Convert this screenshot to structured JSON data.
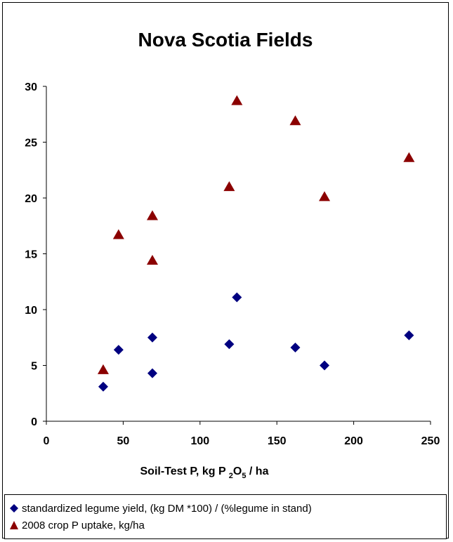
{
  "chart_data": {
    "type": "scatter",
    "title": "Nova Scotia Fields",
    "xlabel": "Soil-Test P, kg P2O5 / ha",
    "xlabel_parts": {
      "main": "Soil-Test P, kg P ",
      "sub1": "2",
      "mid": "O",
      "sub2": "5",
      "tail": " / ha"
    },
    "ylabel": "",
    "xlim": [
      0,
      250
    ],
    "ylim": [
      0,
      30
    ],
    "xticks": [
      0,
      50,
      100,
      150,
      200,
      250
    ],
    "yticks": [
      0,
      5,
      10,
      15,
      20,
      25,
      30
    ],
    "grid": false,
    "legend_position": "bottom",
    "series": [
      {
        "name": "standardized legume yield, (kg DM *100) / (%legume in stand)",
        "marker": "diamond",
        "color": "#000080",
        "points": [
          {
            "x": 37,
            "y": 3.1
          },
          {
            "x": 47,
            "y": 6.4
          },
          {
            "x": 69,
            "y": 7.5
          },
          {
            "x": 69,
            "y": 4.3
          },
          {
            "x": 119,
            "y": 6.9
          },
          {
            "x": 124,
            "y": 11.1
          },
          {
            "x": 162,
            "y": 6.6
          },
          {
            "x": 181,
            "y": 5.0
          },
          {
            "x": 236,
            "y": 7.7
          }
        ]
      },
      {
        "name": "2008 crop P uptake, kg/ha",
        "marker": "triangle",
        "color": "#8B0000",
        "points": [
          {
            "x": 37,
            "y": 4.6
          },
          {
            "x": 47,
            "y": 16.7
          },
          {
            "x": 69,
            "y": 18.4
          },
          {
            "x": 69,
            "y": 14.4
          },
          {
            "x": 119,
            "y": 21.0
          },
          {
            "x": 124,
            "y": 28.7
          },
          {
            "x": 162,
            "y": 26.9
          },
          {
            "x": 181,
            "y": 20.1
          },
          {
            "x": 236,
            "y": 23.6
          }
        ]
      }
    ]
  }
}
